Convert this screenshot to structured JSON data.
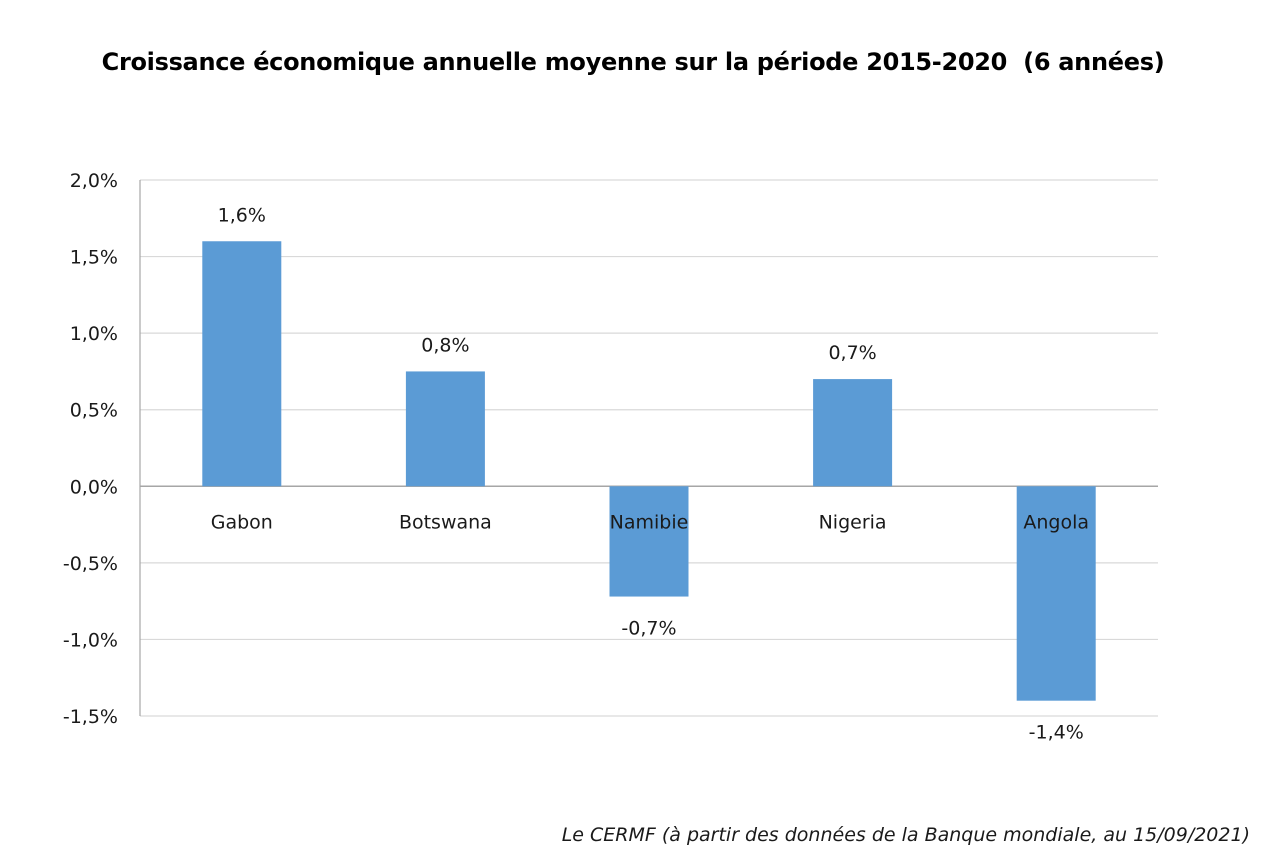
{
  "chart_data": {
    "type": "bar",
    "title": "Croissance économique annuelle moyenne sur la période 2015-2020  (6 années)",
    "categories": [
      "Gabon",
      "Botswana",
      "Namibie",
      "Nigeria",
      "Angola"
    ],
    "values": [
      1.6,
      0.75,
      -0.72,
      0.7,
      -1.4
    ],
    "data_labels": [
      "1,6%",
      "0,8%",
      "-0,7%",
      "0,7%",
      "-1,4%"
    ],
    "y_ticks": [
      2.0,
      1.5,
      1.0,
      0.5,
      0.0,
      -0.5,
      -1.0,
      -1.5
    ],
    "y_tick_labels": [
      "2,0%",
      "1,5%",
      "1,0%",
      "0,5%",
      "0,0%",
      "-0,5%",
      "-1,0%",
      "-1,5%"
    ],
    "ylim": [
      -1.5,
      2.0
    ],
    "xlabel": "",
    "ylabel": "",
    "grid": true,
    "legend": "none",
    "bar_color": "#5b9bd5",
    "grid_color": "#d9d9d9",
    "axis_color": "#a6a6a6"
  },
  "source_note": "Le CERMF (à partir des données de la Banque mondiale, au 15/09/2021)"
}
